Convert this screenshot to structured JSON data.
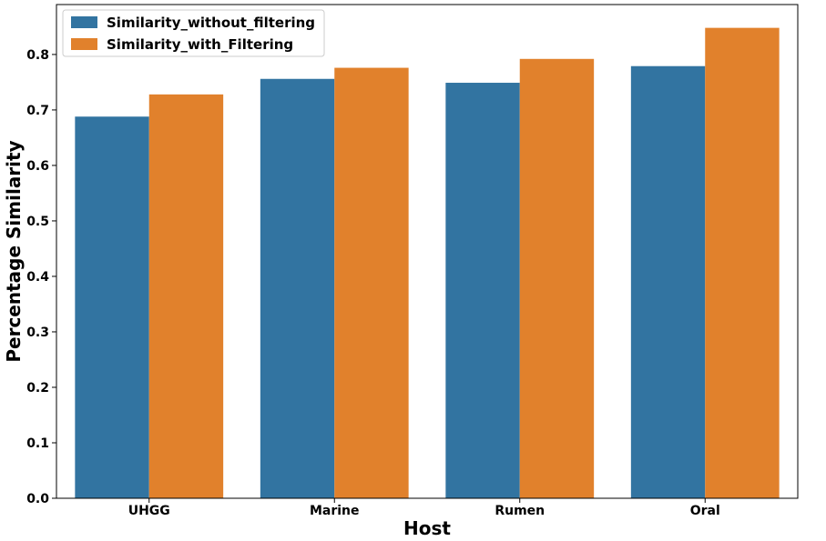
{
  "chart_data": {
    "type": "bar",
    "categories": [
      "UHGG",
      "Marine",
      "Rumen",
      "Oral"
    ],
    "series": [
      {
        "name": "Similarity_without_filtering",
        "color": "#3274a1",
        "values": [
          0.688,
          0.756,
          0.749,
          0.779
        ]
      },
      {
        "name": "Similarity_with_Filtering",
        "color": "#e1812c",
        "values": [
          0.728,
          0.776,
          0.792,
          0.848
        ]
      }
    ],
    "xlabel": "Host",
    "ylabel": "Percentage Similarity",
    "ylim": [
      0,
      0.89
    ],
    "yticks": [
      "0.0",
      "0.1",
      "0.2",
      "0.3",
      "0.4",
      "0.5",
      "0.6",
      "0.7",
      "0.8"
    ],
    "legend_position": "top-left",
    "grid": false
  }
}
